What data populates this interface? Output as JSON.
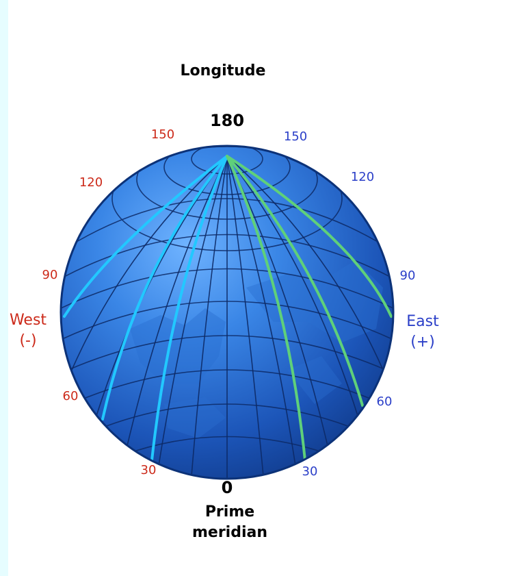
{
  "title": "Longitude",
  "top_value": "180",
  "bottom_value": "0",
  "prime_meridian": [
    "Prime",
    "meridian"
  ],
  "west": {
    "label": "West",
    "sign": "(-)",
    "ticks": [
      "150",
      "120",
      "90",
      "60",
      "30"
    ]
  },
  "east": {
    "label": "East",
    "sign": "(+)",
    "ticks": [
      "150",
      "120",
      "90",
      "60",
      "30"
    ]
  },
  "colors": {
    "west_text": "#cc2a1a",
    "east_text": "#2b3fc8",
    "globe": "#1f5fc2",
    "west_meridians": "#22c8ff",
    "east_meridians": "#5fd07a",
    "background": "#e6fdff"
  },
  "icons": {
    "globe": "globe-icon"
  }
}
